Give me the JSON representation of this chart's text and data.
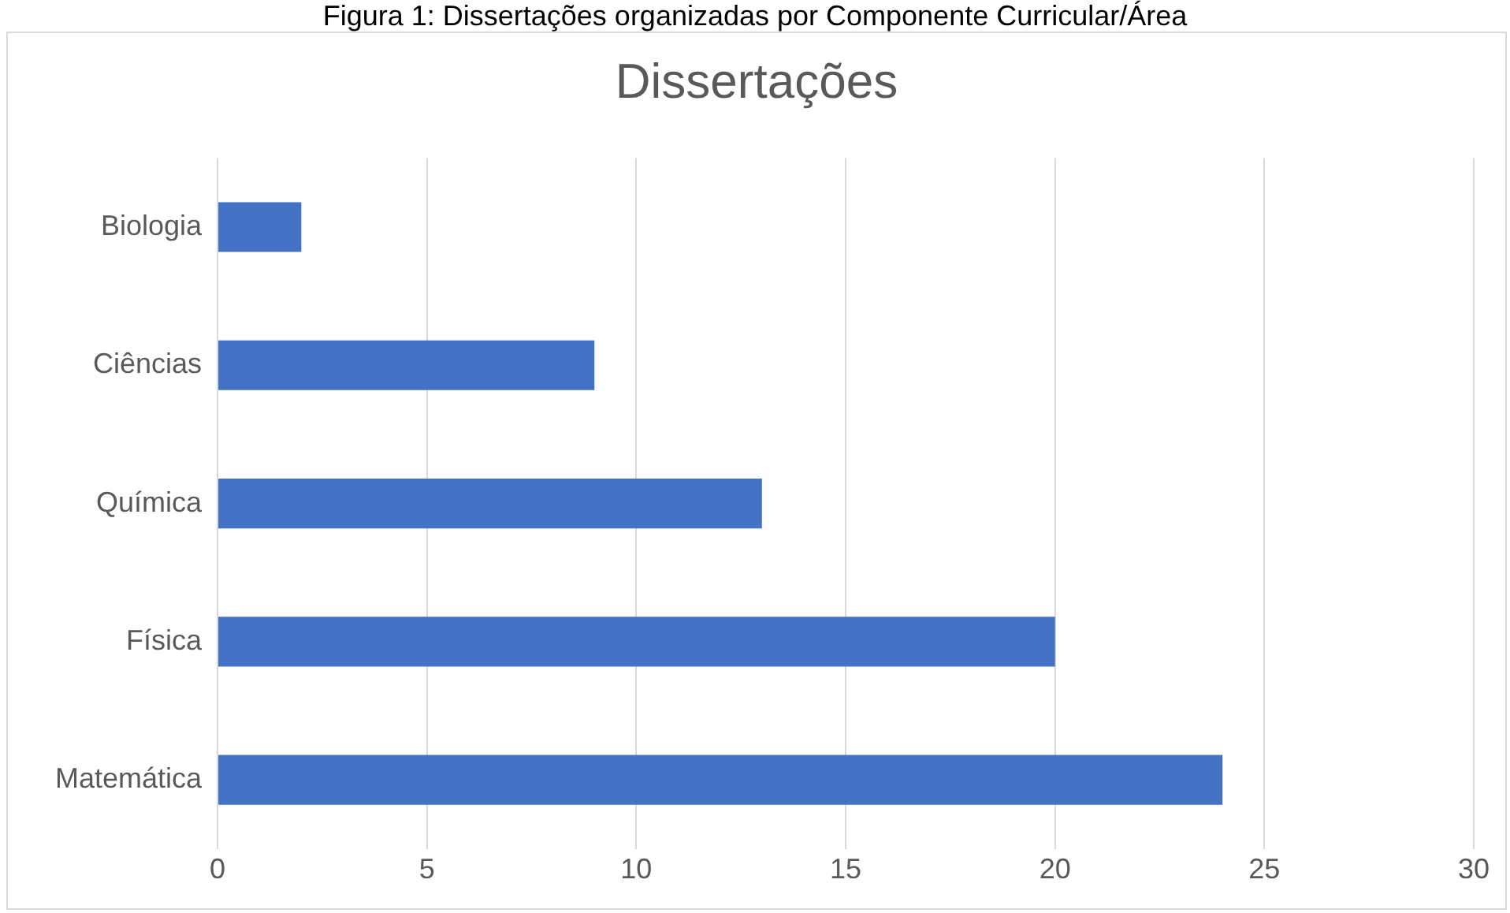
{
  "chart_data": {
    "type": "bar",
    "title": "Dissertações",
    "orientation": "horizontal",
    "categories": [
      "Biologia",
      "Ciências",
      "Química",
      "Física",
      "Matemática"
    ],
    "values": [
      2,
      9,
      13,
      20,
      24
    ],
    "color": "#4472c4",
    "xlim": [
      0,
      30
    ],
    "xticks": [
      0,
      5,
      10,
      15,
      20,
      25,
      30
    ],
    "grid": "x",
    "annotations": [
      "Figura 1: Dissertações organizadas por Componente Curricular/Área"
    ]
  }
}
